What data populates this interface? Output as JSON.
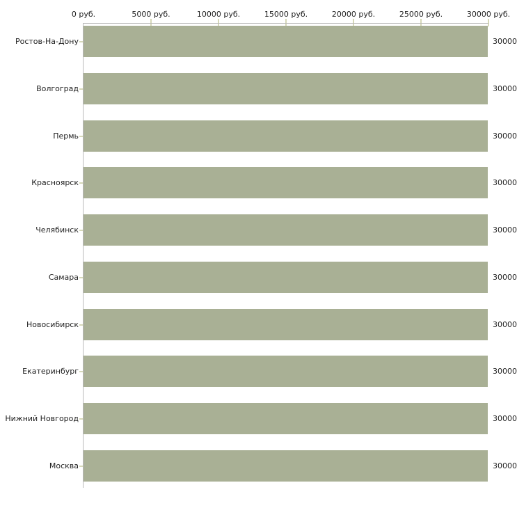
{
  "chart_data": {
    "type": "bar",
    "orientation": "horizontal",
    "title": "",
    "xlabel": "",
    "ylabel": "",
    "unit": "руб.",
    "categories": [
      "Ростов-На-Дону",
      "Волгоград",
      "Пермь",
      "Красноярск",
      "Челябинск",
      "Самара",
      "Новосибирск",
      "Екатеринбург",
      "Нижний Новгород",
      "Москва"
    ],
    "values": [
      30000,
      30000,
      30000,
      30000,
      30000,
      30000,
      30000,
      30000,
      30000,
      30000
    ],
    "bar_value_labels": [
      "30000",
      "30000",
      "30000",
      "30000",
      "30000",
      "30000",
      "30000",
      "30000",
      "30000",
      "30000"
    ],
    "x_ticks": [
      {
        "value": 0,
        "label": "0 руб."
      },
      {
        "value": 5000,
        "label": "5000 руб."
      },
      {
        "value": 10000,
        "label": "10000 руб."
      },
      {
        "value": 15000,
        "label": "15000 руб."
      },
      {
        "value": 20000,
        "label": "20000 руб."
      },
      {
        "value": 25000,
        "label": "25000 руб."
      },
      {
        "value": 30000,
        "label": "30000 руб."
      }
    ],
    "xlim": [
      0,
      30000
    ],
    "grid": false,
    "legend_position": "none",
    "colors": {
      "bar": "#a9b095",
      "axis_line": "#b9b9b9",
      "tick_mark": "#d6d8b8",
      "text": "#1f1f1f",
      "background": "#ffffff"
    }
  }
}
